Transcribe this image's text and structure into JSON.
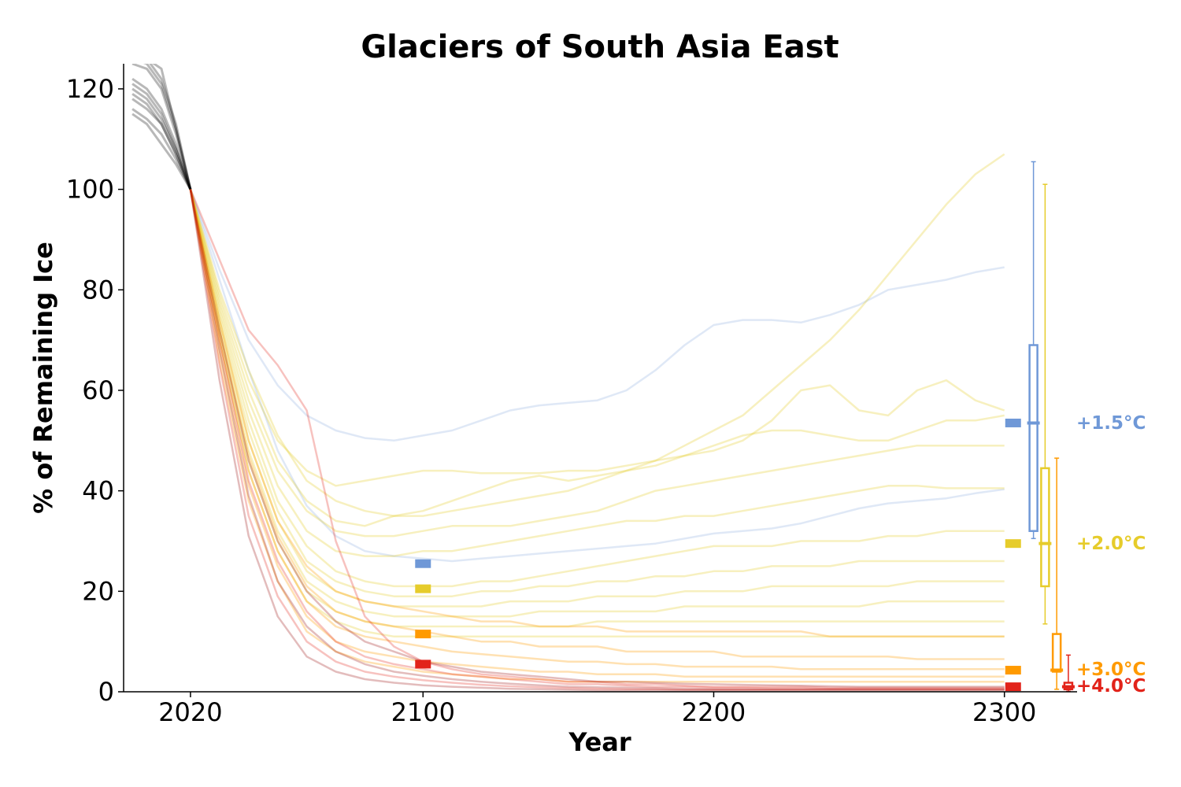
{
  "chart_data": {
    "type": "line",
    "title": "Glaciers of South Asia East",
    "xlabel": "Year",
    "ylabel": "% of Remaining Ice",
    "xlim": [
      1997,
      2325
    ],
    "ylim": [
      0,
      125
    ],
    "xticks": [
      2020,
      2100,
      2200,
      2300
    ],
    "yticks": [
      0,
      20,
      40,
      60,
      80,
      100,
      120
    ],
    "grid": false,
    "legend": "none",
    "colors": {
      "historical": "#000000",
      "warming_1_5": "#6f98d7",
      "warming_2_0": "#e6cc2b",
      "warming_3_0": "#ff9a00",
      "warming_4_0": "#e2231a",
      "warming_4_0_dark": "#9b1010"
    },
    "historical_runs": {
      "x": [
        2000,
        2005,
        2010,
        2015,
        2020
      ],
      "runs": [
        [
          128,
          126,
          124,
          112,
          100
        ],
        [
          127,
          126,
          122,
          113,
          100
        ],
        [
          126,
          125,
          121,
          112,
          100
        ],
        [
          125,
          124,
          120,
          111,
          100
        ],
        [
          122,
          120,
          116,
          109,
          100
        ],
        [
          121,
          119,
          115,
          108,
          100
        ],
        [
          120,
          118,
          114,
          108,
          100
        ],
        [
          119,
          117,
          113,
          107,
          100
        ],
        [
          118,
          116,
          113,
          107,
          100
        ],
        [
          116,
          114,
          111,
          106,
          100
        ],
        [
          115,
          113,
          109,
          105,
          100
        ]
      ]
    },
    "series": [
      {
        "name": "+1.5°C",
        "color": "#6f98d7",
        "x": [
          2020,
          2030,
          2040,
          2050,
          2060,
          2070,
          2080,
          2090,
          2100,
          2110,
          2120,
          2130,
          2140,
          2150,
          2160,
          2170,
          2180,
          2190,
          2200,
          2210,
          2220,
          2230,
          2240,
          2250,
          2260,
          2270,
          2280,
          2290,
          2300
        ],
        "runs": [
          [
            100,
            84,
            70,
            61,
            55,
            52,
            50.5,
            50,
            51,
            52,
            54,
            56,
            57,
            57.5,
            58,
            60,
            64,
            69,
            73,
            74,
            74,
            73.5,
            75,
            77,
            80,
            81,
            82,
            83.5,
            84.5
          ],
          [
            100,
            82,
            64,
            48,
            37,
            31,
            28,
            27,
            26.5,
            26,
            26.5,
            27,
            27.5,
            28,
            28.5,
            29,
            29.5,
            30.5,
            31.5,
            32,
            32.5,
            33.5,
            35,
            36.5,
            37.5,
            38,
            38.5,
            39.5,
            40.3
          ]
        ],
        "y2100": 25.5,
        "y2300_median": 53.5,
        "box2300": {
          "whisker_low": 30.5,
          "q1": 32,
          "median": 53.5,
          "q3": 69,
          "whisker_high": 105.5
        }
      },
      {
        "name": "+2.0°C",
        "color": "#e6cc2b",
        "x": [
          2020,
          2030,
          2040,
          2050,
          2060,
          2070,
          2080,
          2090,
          2100,
          2110,
          2120,
          2130,
          2140,
          2150,
          2160,
          2170,
          2180,
          2190,
          2200,
          2210,
          2220,
          2230,
          2240,
          2250,
          2260,
          2270,
          2280,
          2290,
          2300
        ],
        "runs": [
          [
            100,
            80,
            64,
            51,
            42,
            38,
            36,
            35,
            35,
            36,
            37,
            38,
            39,
            40,
            42,
            44,
            46,
            49,
            52,
            55,
            60,
            65,
            70,
            76,
            83,
            90,
            97,
            103,
            107
          ],
          [
            100,
            79,
            62,
            50,
            44,
            41,
            42,
            43,
            44,
            44,
            43.5,
            43.5,
            43.5,
            44,
            44,
            45,
            46,
            47,
            48,
            50,
            54,
            60,
            61,
            56,
            55,
            60,
            62,
            58,
            56
          ],
          [
            100,
            78,
            60,
            46,
            38,
            34,
            33,
            35,
            36,
            38,
            40,
            42,
            43,
            42,
            43,
            44,
            45,
            47,
            49,
            51,
            52,
            52,
            51,
            50,
            50,
            52,
            54,
            54,
            55
          ],
          [
            100,
            77,
            58,
            44,
            36,
            32,
            31,
            31,
            32,
            33,
            33,
            33,
            34,
            35,
            36,
            38,
            40,
            41,
            42,
            43,
            44,
            45,
            46,
            47,
            48,
            49,
            49,
            49,
            49
          ],
          [
            100,
            76,
            56,
            41,
            32,
            28,
            27,
            27,
            28,
            28,
            29,
            30,
            31,
            32,
            33,
            34,
            34,
            35,
            35,
            36,
            37,
            38,
            39,
            40,
            41,
            41,
            40.5,
            40.5,
            40.5
          ],
          [
            100,
            75,
            54,
            38,
            29,
            24,
            22,
            21,
            21,
            21,
            22,
            22,
            23,
            24,
            25,
            26,
            27,
            28,
            29,
            29,
            29,
            30,
            30,
            30,
            31,
            31,
            32,
            32,
            32
          ],
          [
            100,
            74,
            52,
            36,
            26,
            22,
            20,
            19,
            19,
            19,
            20,
            20,
            21,
            21,
            22,
            22,
            23,
            23,
            24,
            24,
            25,
            25,
            25,
            26,
            26,
            26,
            26,
            26,
            26
          ],
          [
            100,
            73,
            50,
            34,
            24,
            20,
            18,
            17,
            17,
            17,
            17,
            18,
            18,
            18,
            19,
            19,
            19,
            20,
            20,
            20,
            21,
            21,
            21,
            21,
            21,
            22,
            22,
            22,
            22
          ],
          [
            100,
            72,
            48,
            32,
            22,
            18,
            16,
            15,
            15,
            15,
            15,
            15,
            16,
            16,
            16,
            16,
            16,
            17,
            17,
            17,
            17,
            17,
            17,
            17,
            18,
            18,
            18,
            18,
            18
          ],
          [
            100,
            71,
            46,
            30,
            20,
            16,
            14,
            13,
            13,
            13,
            13,
            13,
            13,
            13,
            14,
            14,
            14,
            14,
            14,
            14,
            14,
            14,
            14,
            14,
            14,
            14,
            14,
            14,
            14
          ],
          [
            100,
            70,
            44,
            28,
            18,
            14,
            12,
            11,
            11,
            11,
            11,
            11,
            11,
            11,
            11,
            11,
            11,
            11,
            11,
            11,
            11,
            11,
            11,
            11,
            11,
            11,
            11,
            11,
            11
          ]
        ],
        "y2100": 20.5,
        "y2300_median": 29.5,
        "box2300": {
          "whisker_low": 13.5,
          "q1": 21,
          "median": 29.5,
          "q3": 44.5,
          "whisker_high": 101
        }
      },
      {
        "name": "+3.0°C",
        "color": "#ff9a00",
        "x": [
          2020,
          2030,
          2040,
          2050,
          2060,
          2070,
          2080,
          2090,
          2100,
          2110,
          2120,
          2130,
          2140,
          2150,
          2160,
          2170,
          2180,
          2190,
          2200,
          2210,
          2220,
          2230,
          2240,
          2250,
          2260,
          2270,
          2280,
          2290,
          2300
        ],
        "runs": [
          [
            100,
            74,
            50,
            34,
            25,
            20,
            18,
            17,
            16,
            15,
            14,
            14,
            13,
            13,
            13,
            12,
            12,
            12,
            12,
            12,
            12,
            12,
            11,
            11,
            11,
            11,
            11,
            11,
            11
          ],
          [
            100,
            72,
            47,
            31,
            21,
            16,
            14,
            13,
            12,
            11,
            10,
            10,
            9,
            9,
            9,
            8,
            8,
            8,
            8,
            7,
            7,
            7,
            7,
            7,
            7,
            6.5,
            6.5,
            6.5,
            6.5
          ],
          [
            100,
            70,
            44,
            28,
            18,
            13,
            11,
            10,
            9,
            8,
            7.5,
            7,
            6.5,
            6,
            6,
            5.5,
            5.5,
            5,
            5,
            5,
            5,
            4.5,
            4.5,
            4.5,
            4.5,
            4.5,
            4.5,
            4.5,
            4.5
          ],
          [
            100,
            68,
            41,
            25,
            15,
            10,
            8,
            7,
            6,
            5.5,
            5,
            4.5,
            4,
            4,
            3.5,
            3.5,
            3.5,
            3,
            3,
            3,
            3,
            3,
            3,
            3,
            3,
            3,
            3,
            3,
            3
          ],
          [
            100,
            66,
            38,
            22,
            12,
            8,
            6,
            5,
            4,
            3.5,
            3,
            2.5,
            2.5,
            2,
            2,
            2,
            2,
            2,
            2,
            2,
            2,
            2,
            2,
            2,
            2,
            2,
            2,
            2,
            2
          ]
        ],
        "y2100": 11.5,
        "y2300_median": 4.3,
        "box2300": {
          "whisker_low": 0.5,
          "q1": 4,
          "median": 4.3,
          "q3": 11.5,
          "whisker_high": 46.5
        }
      },
      {
        "name": "+4.0°C",
        "color": "#e2231a",
        "x": [
          2020,
          2030,
          2040,
          2050,
          2060,
          2070,
          2080,
          2090,
          2100,
          2110,
          2120,
          2130,
          2140,
          2150,
          2160,
          2170,
          2180,
          2190,
          2200,
          2210,
          2220,
          2230,
          2240,
          2250,
          2260,
          2270,
          2280,
          2290,
          2300
        ],
        "runs": [
          [
            100,
            86,
            72,
            65,
            56,
            30,
            15,
            9,
            6,
            4.5,
            3.5,
            3,
            2.5,
            2,
            2,
            1.5,
            1.5,
            1.2,
            1,
            1,
            1,
            1,
            0.8,
            0.8,
            0.8,
            0.8,
            0.8,
            0.8,
            0.8
          ],
          [
            100,
            72,
            46,
            30,
            20,
            14,
            10,
            8,
            6,
            5,
            4,
            3.5,
            3,
            2.5,
            2,
            2,
            1.8,
            1.6,
            1.5,
            1.4,
            1.3,
            1.2,
            1.1,
            1,
            1,
            1,
            1,
            1,
            1
          ],
          [
            100,
            70,
            42,
            26,
            16,
            10,
            7,
            5.5,
            4.5,
            3.5,
            3,
            2.5,
            2,
            1.5,
            1.5,
            1.2,
            1,
            1,
            0.8,
            0.8,
            0.7,
            0.7,
            0.6,
            0.6,
            0.6,
            0.6,
            0.6,
            0.6,
            0.6
          ],
          [
            100,
            68,
            39,
            22,
            13,
            8,
            5.5,
            4,
            3.2,
            2.5,
            2,
            1.6,
            1.3,
            1,
            0.9,
            0.8,
            0.7,
            0.6,
            0.5,
            0.5,
            0.5,
            0.5,
            0.5,
            0.5,
            0.5,
            0.5,
            0.5,
            0.5,
            0.5
          ],
          [
            100,
            65,
            35,
            19,
            10,
            6,
            4,
            3,
            2.3,
            1.8,
            1.4,
            1.1,
            0.9,
            0.7,
            0.6,
            0.5,
            0.5,
            0.4,
            0.4,
            0.4,
            0.4,
            0.4,
            0.4,
            0.4,
            0.4,
            0.4,
            0.4,
            0.4,
            0.4
          ],
          [
            100,
            62,
            31,
            15,
            7,
            4,
            2.5,
            1.8,
            1.3,
            1,
            0.8,
            0.6,
            0.5,
            0.4,
            0.3,
            0.3,
            0.3,
            0.3,
            0.3,
            0.3,
            0.3,
            0.3,
            0.3,
            0.3,
            0.3,
            0.3,
            0.3,
            0.3,
            0.3
          ]
        ],
        "y2100": 5.5,
        "y2300_median": 1,
        "box2300": {
          "whisker_low": 0.1,
          "q1": 0.5,
          "median": 1,
          "q3": 1.8,
          "whisker_high": 7.3
        }
      }
    ],
    "labels_right": [
      {
        "text": "+1.5°C",
        "y": 53.5,
        "color": "#6f98d7"
      },
      {
        "text": "+2.0°C",
        "y": 29.5,
        "color": "#e6cc2b"
      },
      {
        "text": "+3.0°C",
        "y": 4.5,
        "color": "#ff9a00"
      },
      {
        "text": "+4.0°C",
        "y": 1.2,
        "color": "#e2231a"
      }
    ]
  }
}
